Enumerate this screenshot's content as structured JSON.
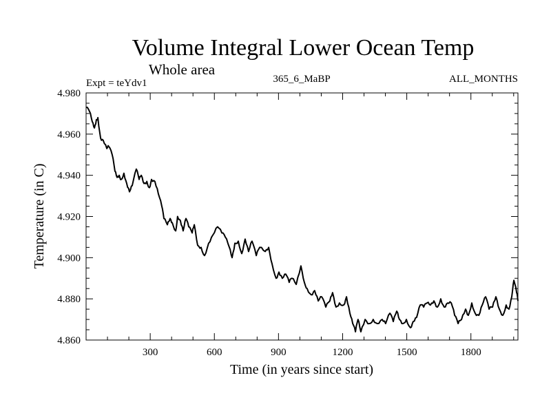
{
  "chart_data": {
    "type": "line",
    "title": "Volume Integral Lower Ocean Temp",
    "subtitle": "Whole area",
    "annotations": {
      "left": "Expt = teYdv1",
      "center": "365_6_MaBP",
      "right": "ALL_MONTHS"
    },
    "xlabel": "Time (in years since start)",
    "ylabel": "Temperature (in C)",
    "xlim": [
      0,
      2020
    ],
    "ylim": [
      4.86,
      4.98
    ],
    "x_ticks": [
      300,
      600,
      900,
      1200,
      1500,
      1800
    ],
    "x_tick_labels": [
      "300",
      "600",
      "900",
      "1200",
      "1500",
      "1800"
    ],
    "y_ticks": [
      4.86,
      4.88,
      4.9,
      4.92,
      4.94,
      4.96,
      4.98
    ],
    "y_tick_labels": [
      "4.860",
      "4.880",
      "4.900",
      "4.920",
      "4.940",
      "4.960",
      "4.980"
    ],
    "grid": false,
    "legend": "none",
    "series": [
      {
        "name": "Volume Integral Lower Ocean Temp",
        "color": "#000000",
        "x": [
          0,
          16,
          29,
          39,
          48,
          55,
          68,
          80,
          97,
          106,
          122,
          135,
          145,
          155,
          164,
          177,
          190,
          203,
          216,
          235,
          248,
          258,
          271,
          284,
          296,
          306,
          322,
          338,
          354,
          364,
          380,
          393,
          403,
          419,
          428,
          441,
          454,
          467,
          480,
          496,
          506,
          522,
          538,
          554,
          573,
          593,
          615,
          635,
          651,
          670,
          683,
          696,
          712,
          728,
          744,
          760,
          776,
          796,
          812,
          838,
          854,
          870,
          889,
          902,
          918,
          934,
          950,
          963,
          983,
          1005,
          1021,
          1034,
          1053,
          1069,
          1086,
          1102,
          1121,
          1140,
          1153,
          1169,
          1185,
          1205,
          1218,
          1234,
          1247,
          1260,
          1272,
          1285,
          1305,
          1324,
          1343,
          1362,
          1385,
          1401,
          1421,
          1437,
          1453,
          1466,
          1482,
          1498,
          1517,
          1530,
          1546,
          1563,
          1579,
          1595,
          1611,
          1627,
          1643,
          1659,
          1675,
          1691,
          1708,
          1724,
          1740,
          1756,
          1775,
          1788,
          1804,
          1820,
          1837,
          1853,
          1869,
          1885,
          1901,
          1917,
          1933,
          1949,
          1965,
          1978,
          1991,
          2001,
          2014,
          2020
        ],
        "values": [
          4.973,
          4.971,
          4.966,
          4.963,
          4.967,
          4.968,
          4.958,
          4.957,
          4.953,
          4.954,
          4.95,
          4.942,
          4.939,
          4.94,
          4.938,
          4.941,
          4.936,
          4.932,
          4.935,
          4.943,
          4.938,
          4.94,
          4.936,
          4.937,
          4.934,
          4.938,
          4.937,
          4.931,
          4.925,
          4.919,
          4.916,
          4.919,
          4.917,
          4.913,
          4.92,
          4.918,
          4.913,
          4.919,
          4.915,
          4.912,
          4.916,
          4.906,
          4.905,
          4.901,
          4.907,
          4.911,
          4.915,
          4.912,
          4.91,
          4.905,
          4.9,
          4.907,
          4.908,
          4.902,
          4.909,
          4.903,
          4.908,
          4.901,
          4.905,
          4.903,
          4.905,
          4.897,
          4.89,
          4.893,
          4.89,
          4.892,
          4.888,
          4.89,
          4.887,
          4.896,
          4.888,
          4.885,
          4.882,
          4.884,
          4.879,
          4.881,
          4.876,
          4.879,
          4.883,
          4.876,
          4.878,
          4.877,
          4.881,
          4.873,
          4.868,
          4.864,
          4.87,
          4.864,
          4.87,
          4.868,
          4.87,
          4.868,
          4.87,
          4.868,
          4.873,
          4.869,
          4.874,
          4.87,
          4.868,
          4.87,
          4.866,
          4.869,
          4.871,
          4.877,
          4.876,
          4.878,
          4.877,
          4.879,
          4.876,
          4.88,
          4.876,
          4.878,
          4.878,
          4.872,
          4.868,
          4.87,
          4.875,
          4.872,
          4.878,
          4.873,
          4.872,
          4.877,
          4.881,
          4.875,
          4.876,
          4.881,
          4.875,
          4.872,
          4.877,
          4.875,
          4.881,
          4.889,
          4.883,
          4.879
        ]
      }
    ]
  }
}
